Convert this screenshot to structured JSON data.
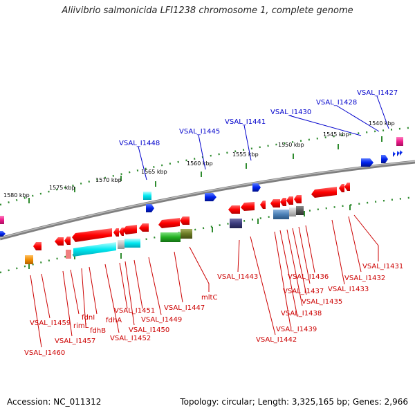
{
  "title": "Aliivibrio salmonicida LFI1238 chromosome 1, complete genome",
  "footer": {
    "accession": "Accession: NC_011312",
    "topology": "Topology: circular; Length: 3,325,165 bp; Genes: 2,966"
  },
  "colors": {
    "backbone": "#8a8a8a",
    "tick_track": "#2e8b2e",
    "forward_label": "#0000cc",
    "reverse_label": "#cc0000"
  },
  "scale_labels": [
    "1580 kbp",
    "1575 kbp",
    "1570 kbp",
    "1565 kbp",
    "1560 kbp",
    "1555 kbp",
    "1550 kbp",
    "1545 kbp",
    "1540 kbp"
  ],
  "forward_genes": [
    "VSAL_I1427",
    "VSAL_I1428",
    "VSAL_I1430",
    "VSAL_I1441",
    "VSAL_I1445",
    "VSAL_I1448"
  ],
  "reverse_genes": [
    "VSAL_I1431",
    "VSAL_I1432",
    "VSAL_I1433",
    "VSAL_I1436",
    "VSAL_I1437",
    "VSAL_I1435",
    "VSAL_I1438",
    "VSAL_I1439",
    "VSAL_I1442",
    "VSAL_I1443",
    "mltC",
    "VSAL_I1447",
    "VSAL_I1449",
    "VSAL_I1450",
    "VSAL_I1451",
    "VSAL_I1452",
    "fdhA",
    "fdhB",
    "fdnI",
    "rimL",
    "VSAL_I1457",
    "VSAL_I1459",
    "VSAL_I1460"
  ]
}
